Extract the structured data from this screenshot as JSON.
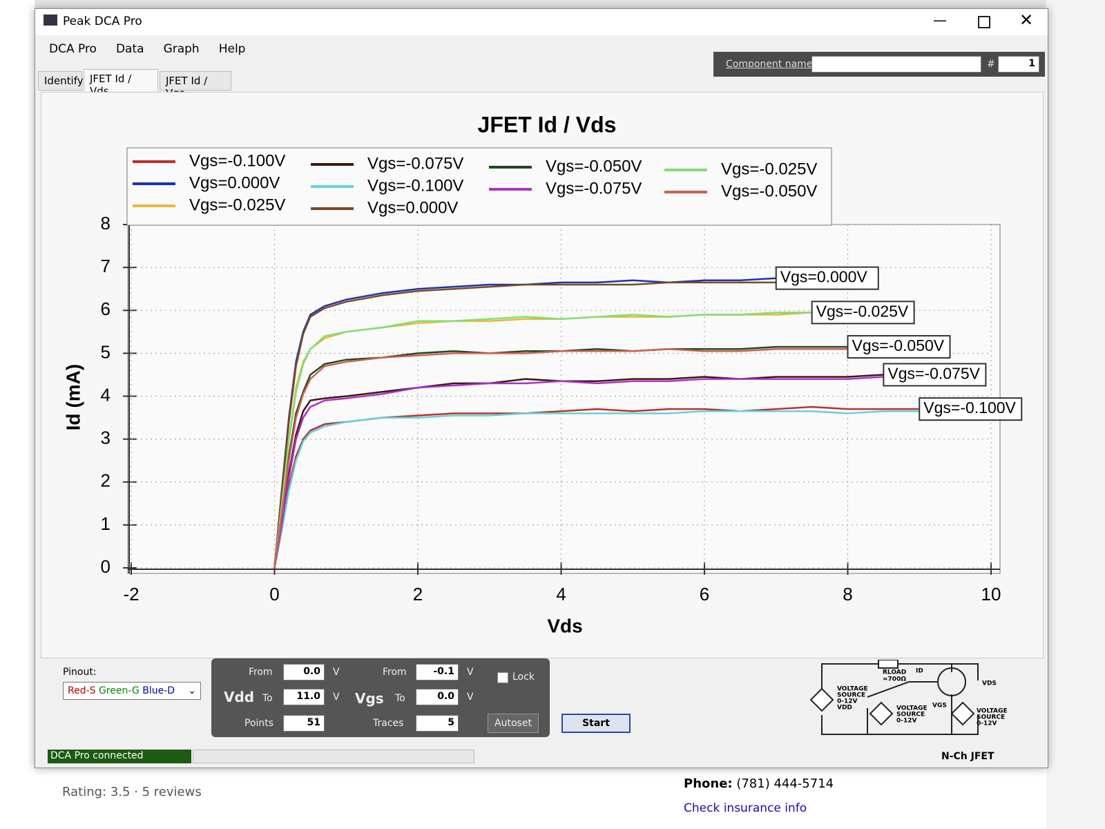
{
  "window": {
    "title": "Peak DCA Pro"
  },
  "menu": [
    "DCA Pro",
    "Data",
    "Graph",
    "Help"
  ],
  "tabs": [
    "Identify",
    "JFET Id / Vds",
    "JFET Id / Vgs"
  ],
  "component": {
    "label": "Component name",
    "hash": "#",
    "number": "1"
  },
  "chart_data": {
    "type": "line",
    "title": "JFET Id / Vds",
    "x_label": "Vds",
    "y_label": "Id (mA)",
    "x": [
      0,
      0.1,
      0.2,
      0.3,
      0.4,
      0.5,
      0.7,
      1,
      1.5,
      2,
      2.5,
      3,
      3.5,
      4,
      4.5,
      5,
      5.5,
      6,
      6.5,
      7,
      7.5,
      8,
      8.5,
      9
    ],
    "series": [
      {
        "name": "Vgs=-0.100V",
        "color": "#c0302a",
        "values": [
          0,
          0.9,
          1.9,
          2.6,
          3.0,
          3.2,
          3.35,
          3.4,
          3.5,
          3.55,
          3.6,
          3.6,
          3.6,
          3.65,
          3.7,
          3.65,
          3.7,
          3.7,
          3.65,
          3.7,
          3.75,
          3.7,
          3.7,
          3.7
        ]
      },
      {
        "name": "Vgs=0.000V",
        "color": "#2030b0",
        "values": [
          0,
          1.8,
          3.5,
          4.8,
          5.5,
          5.9,
          6.1,
          6.25,
          6.4,
          6.5,
          6.55,
          6.6,
          6.6,
          6.65,
          6.65,
          6.7,
          6.65,
          6.7,
          6.7,
          6.75,
          null,
          null,
          null,
          null
        ]
      },
      {
        "name": "Vgs=-0.025V",
        "color": "#e8b838",
        "values": [
          0,
          1.5,
          3.0,
          4.2,
          4.8,
          5.1,
          5.35,
          5.5,
          5.6,
          5.7,
          5.75,
          5.75,
          5.8,
          5.8,
          5.85,
          5.85,
          5.85,
          5.9,
          5.9,
          5.9,
          5.95,
          null,
          null,
          null
        ]
      },
      {
        "name": "Vgs=-0.075V",
        "color": "#3a1a14",
        "values": [
          0,
          1.1,
          2.2,
          3.1,
          3.65,
          3.9,
          3.95,
          4.0,
          4.1,
          4.2,
          4.3,
          4.3,
          4.4,
          4.35,
          4.35,
          4.4,
          4.4,
          4.45,
          4.4,
          4.45,
          4.45,
          4.45,
          4.5,
          null
        ]
      },
      {
        "name": "Vgs=-0.100V",
        "color": "#60d4dc",
        "values": [
          0,
          0.85,
          1.8,
          2.5,
          2.95,
          3.15,
          3.3,
          3.4,
          3.5,
          3.5,
          3.55,
          3.55,
          3.6,
          3.6,
          3.6,
          3.6,
          3.6,
          3.65,
          3.65,
          3.65,
          3.65,
          3.6,
          3.65,
          3.65
        ]
      },
      {
        "name": "Vgs=0.000V",
        "color": "#7a4a22",
        "values": [
          0,
          1.75,
          3.4,
          4.7,
          5.45,
          5.85,
          6.05,
          6.2,
          6.35,
          6.45,
          6.5,
          6.55,
          6.6,
          6.6,
          6.6,
          6.6,
          6.65,
          6.65,
          6.65,
          6.65,
          null,
          null,
          null,
          null
        ]
      },
      {
        "name": "Vgs=-0.050V",
        "color": "#1e4a1e",
        "values": [
          0,
          1.3,
          2.6,
          3.6,
          4.1,
          4.5,
          4.75,
          4.85,
          4.9,
          5.0,
          5.05,
          5.0,
          5.05,
          5.05,
          5.1,
          5.05,
          5.1,
          5.1,
          5.1,
          5.15,
          5.15,
          5.15,
          null,
          null
        ]
      },
      {
        "name": "Vgs=-0.075V",
        "color": "#b030c8",
        "values": [
          0,
          1.0,
          2.1,
          3.0,
          3.5,
          3.75,
          3.9,
          3.95,
          4.05,
          4.2,
          4.25,
          4.3,
          4.3,
          4.35,
          4.3,
          4.35,
          4.35,
          4.4,
          4.4,
          4.4,
          4.4,
          4.4,
          4.45,
          null
        ]
      },
      {
        "name": "Vgs=-0.025V",
        "color": "#80e070",
        "values": [
          0,
          1.45,
          2.95,
          4.1,
          4.75,
          5.1,
          5.4,
          5.5,
          5.6,
          5.75,
          5.75,
          5.8,
          5.85,
          5.8,
          5.85,
          5.9,
          5.85,
          5.9,
          5.9,
          5.95,
          5.95,
          null,
          null,
          null
        ]
      },
      {
        "name": "Vgs=-0.050V",
        "color": "#d06050",
        "values": [
          0,
          1.25,
          2.5,
          3.5,
          4.05,
          4.4,
          4.7,
          4.8,
          4.9,
          4.95,
          5.0,
          5.0,
          5.0,
          5.05,
          5.05,
          5.05,
          5.1,
          5.05,
          5.05,
          5.1,
          5.1,
          5.1,
          null,
          null
        ]
      }
    ],
    "end_labels": [
      "Vgs=0.000V",
      "Vgs=-0.025V",
      "Vgs=-0.050V",
      "Vgs=-0.075V",
      "Vgs=-0.100V"
    ],
    "xlim": [
      -2,
      10
    ],
    "xticks": [
      -2,
      0,
      2,
      4,
      6,
      8,
      10
    ],
    "ylim": [
      0,
      8
    ],
    "yticks": [
      0,
      1,
      2,
      3,
      4,
      5,
      6,
      7,
      8
    ],
    "grid": true,
    "legend": "top"
  },
  "controls": {
    "pinout_label": "Pinout:",
    "pinout": [
      "Red-S",
      "Green-G",
      "Blue-D"
    ],
    "labels": {
      "from": "From",
      "to": "To",
      "points": "Points",
      "traces": "Traces",
      "unit": "V"
    },
    "vdd": {
      "name": "Vdd",
      "from": "0.0",
      "to": "11.0",
      "points": "51"
    },
    "vgs": {
      "name": "Vgs",
      "from": "-0.1",
      "to": "0.0",
      "traces": "5"
    },
    "lock": "Lock",
    "autoset": "Autoset",
    "start": "Start"
  },
  "circuit": {
    "rload": "RLOAD",
    "rval": "≈700Ω",
    "id": "ID",
    "vds": "VDS",
    "vgs": "VGS",
    "src1": [
      "VOLTAGE",
      "SOURCE",
      "0-12V",
      "VDD"
    ],
    "src2": [
      "VOLTAGE",
      "SOURCE",
      "0-12V"
    ],
    "src3": [
      "VOLTAGE",
      "SOURCE",
      "0-12V"
    ]
  },
  "status": {
    "connection": "DCA Pro connected",
    "device": "N-Ch JFET"
  },
  "background": {
    "phone_label": "Phone:",
    "phone": "(781) 444-5714",
    "insurance": "Check insurance info",
    "rating": "Rating: 3.5",
    "reviews": "5 reviews"
  }
}
